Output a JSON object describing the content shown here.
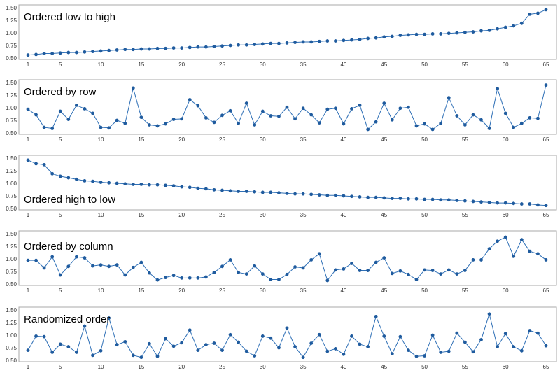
{
  "chart_data": [
    {
      "type": "line",
      "title": "Ordered low to high",
      "x": [
        1,
        2,
        3,
        4,
        5,
        6,
        7,
        8,
        9,
        10,
        11,
        12,
        13,
        14,
        15,
        16,
        17,
        18,
        19,
        20,
        21,
        22,
        23,
        24,
        25,
        26,
        27,
        28,
        29,
        30,
        31,
        32,
        33,
        34,
        35,
        36,
        37,
        38,
        39,
        40,
        41,
        42,
        43,
        44,
        45,
        46,
        47,
        48,
        49,
        50,
        51,
        52,
        53,
        54,
        55,
        56,
        57,
        58,
        59,
        60,
        61,
        62,
        63,
        64,
        65
      ],
      "values": [
        0.56,
        0.57,
        0.59,
        0.59,
        0.6,
        0.61,
        0.61,
        0.62,
        0.63,
        0.64,
        0.65,
        0.66,
        0.67,
        0.67,
        0.68,
        0.68,
        0.69,
        0.69,
        0.7,
        0.7,
        0.71,
        0.72,
        0.72,
        0.73,
        0.74,
        0.75,
        0.76,
        0.76,
        0.77,
        0.78,
        0.79,
        0.79,
        0.8,
        0.81,
        0.82,
        0.82,
        0.83,
        0.84,
        0.84,
        0.85,
        0.86,
        0.87,
        0.89,
        0.9,
        0.92,
        0.93,
        0.95,
        0.96,
        0.97,
        0.97,
        0.98,
        0.98,
        0.99,
        1.0,
        1.01,
        1.02,
        1.04,
        1.05,
        1.08,
        1.11,
        1.14,
        1.19,
        1.37,
        1.39,
        1.46
      ],
      "yticks": [
        "0.50",
        "0.75",
        "1.00",
        "1.25",
        "1.50"
      ],
      "ylim": [
        0.5,
        1.5
      ],
      "xticks": [
        1,
        5,
        10,
        15,
        20,
        25,
        30,
        35,
        40,
        45,
        50,
        55,
        60,
        65
      ],
      "xlim": [
        1,
        65
      ],
      "color": "#1f5b9e"
    },
    {
      "type": "line",
      "title": "Ordered by row",
      "x": [
        1,
        2,
        3,
        4,
        5,
        6,
        7,
        8,
        9,
        10,
        11,
        12,
        13,
        14,
        15,
        16,
        17,
        18,
        19,
        20,
        21,
        22,
        23,
        24,
        25,
        26,
        27,
        28,
        29,
        30,
        31,
        32,
        33,
        34,
        35,
        36,
        37,
        38,
        39,
        40,
        41,
        42,
        43,
        44,
        45,
        46,
        47,
        48,
        49,
        50,
        51,
        52,
        53,
        54,
        55,
        56,
        57,
        58,
        59,
        60,
        61,
        62,
        63,
        64,
        65
      ],
      "values": [
        0.97,
        0.86,
        0.61,
        0.59,
        0.93,
        0.77,
        1.05,
        0.98,
        0.89,
        0.61,
        0.6,
        0.75,
        0.69,
        1.39,
        0.81,
        0.66,
        0.64,
        0.68,
        0.77,
        0.78,
        1.16,
        1.04,
        0.8,
        0.71,
        0.85,
        0.94,
        0.69,
        1.09,
        0.66,
        0.93,
        0.84,
        0.83,
        1.01,
        0.78,
        0.99,
        0.86,
        0.7,
        0.97,
        0.99,
        0.68,
        0.98,
        1.05,
        0.57,
        0.72,
        1.09,
        0.76,
        0.99,
        1.01,
        0.64,
        0.68,
        0.57,
        0.69,
        1.2,
        0.84,
        0.66,
        0.86,
        0.76,
        0.59,
        1.38,
        0.89,
        0.61,
        0.69,
        0.8,
        0.79,
        1.45
      ],
      "yticks": [
        "0.50",
        "0.75",
        "1.00",
        "1.25",
        "1.50"
      ],
      "ylim": [
        0.5,
        1.5
      ],
      "xticks": [
        1,
        5,
        10,
        15,
        20,
        25,
        30,
        35,
        40,
        45,
        50,
        55,
        60,
        65
      ],
      "xlim": [
        1,
        65
      ],
      "color": "#1f5b9e"
    },
    {
      "type": "line",
      "title": "Ordered high to low",
      "x": [
        1,
        2,
        3,
        4,
        5,
        6,
        7,
        8,
        9,
        10,
        11,
        12,
        13,
        14,
        15,
        16,
        17,
        18,
        19,
        20,
        21,
        22,
        23,
        24,
        25,
        26,
        27,
        28,
        29,
        30,
        31,
        32,
        33,
        34,
        35,
        36,
        37,
        38,
        39,
        40,
        41,
        42,
        43,
        44,
        45,
        46,
        47,
        48,
        49,
        50,
        51,
        52,
        53,
        54,
        55,
        56,
        57,
        58,
        59,
        60,
        61,
        62,
        63,
        64,
        65
      ],
      "values": [
        1.46,
        1.39,
        1.37,
        1.19,
        1.14,
        1.11,
        1.08,
        1.05,
        1.04,
        1.02,
        1.01,
        1.0,
        0.99,
        0.98,
        0.98,
        0.97,
        0.97,
        0.96,
        0.95,
        0.93,
        0.92,
        0.9,
        0.89,
        0.87,
        0.86,
        0.85,
        0.84,
        0.84,
        0.83,
        0.82,
        0.82,
        0.81,
        0.8,
        0.79,
        0.79,
        0.78,
        0.77,
        0.76,
        0.76,
        0.75,
        0.74,
        0.73,
        0.72,
        0.72,
        0.71,
        0.7,
        0.7,
        0.69,
        0.69,
        0.68,
        0.68,
        0.67,
        0.67,
        0.66,
        0.65,
        0.64,
        0.63,
        0.62,
        0.61,
        0.61,
        0.6,
        0.59,
        0.59,
        0.57,
        0.56
      ],
      "yticks": [
        "0.50",
        "0.75",
        "1.00",
        "1.25",
        "1.50"
      ],
      "ylim": [
        0.5,
        1.5
      ],
      "xticks": [
        1,
        5,
        10,
        15,
        20,
        25,
        30,
        35,
        40,
        45,
        50,
        55,
        60,
        65
      ],
      "xlim": [
        1,
        65
      ],
      "color": "#1f5b9e"
    },
    {
      "type": "line",
      "title": "Ordered by column",
      "x": [
        1,
        2,
        3,
        4,
        5,
        6,
        7,
        8,
        9,
        10,
        11,
        12,
        13,
        14,
        15,
        16,
        17,
        18,
        19,
        20,
        21,
        22,
        23,
        24,
        25,
        26,
        27,
        28,
        29,
        30,
        31,
        32,
        33,
        34,
        35,
        36,
        37,
        38,
        39,
        40,
        41,
        42,
        43,
        44,
        45,
        46,
        47,
        48,
        49,
        50,
        51,
        52,
        53,
        54,
        55,
        56,
        57,
        58,
        59,
        60,
        61,
        62,
        63,
        64,
        65
      ],
      "values": [
        0.97,
        0.97,
        0.82,
        1.04,
        0.68,
        0.85,
        1.04,
        1.02,
        0.86,
        0.88,
        0.85,
        0.88,
        0.68,
        0.83,
        0.93,
        0.72,
        0.58,
        0.63,
        0.67,
        0.62,
        0.62,
        0.62,
        0.64,
        0.73,
        0.85,
        0.98,
        0.73,
        0.7,
        0.86,
        0.7,
        0.59,
        0.59,
        0.69,
        0.84,
        0.82,
        0.98,
        1.1,
        0.57,
        0.78,
        0.8,
        0.91,
        0.77,
        0.77,
        0.93,
        1.02,
        0.71,
        0.76,
        0.69,
        0.59,
        0.78,
        0.77,
        0.7,
        0.78,
        0.7,
        0.77,
        0.98,
        0.98,
        1.2,
        1.35,
        1.43,
        1.05,
        1.38,
        1.15,
        1.1,
        0.98
      ],
      "yticks": [
        "0.50",
        "0.75",
        "1.00",
        "1.25",
        "1.50"
      ],
      "ylim": [
        0.5,
        1.5
      ],
      "xticks": [
        1,
        5,
        10,
        15,
        20,
        25,
        30,
        35,
        40,
        45,
        50,
        55,
        60,
        65
      ],
      "xlim": [
        1,
        65
      ],
      "color": "#1f5b9e"
    },
    {
      "type": "line",
      "title": "Randomized order",
      "x": [
        1,
        2,
        3,
        4,
        5,
        6,
        7,
        8,
        9,
        10,
        11,
        12,
        13,
        14,
        15,
        16,
        17,
        18,
        19,
        20,
        21,
        22,
        23,
        24,
        25,
        26,
        27,
        28,
        29,
        30,
        31,
        32,
        33,
        34,
        35,
        36,
        37,
        38,
        39,
        40,
        41,
        42,
        43,
        44,
        45,
        46,
        47,
        48,
        49,
        50,
        51,
        52,
        53,
        54,
        55,
        56,
        57,
        58,
        59,
        60,
        61,
        62,
        63,
        64,
        65
      ],
      "values": [
        0.7,
        0.98,
        0.97,
        0.66,
        0.82,
        0.77,
        0.66,
        1.18,
        0.6,
        0.69,
        1.34,
        0.81,
        0.87,
        0.6,
        0.56,
        0.83,
        0.58,
        0.93,
        0.78,
        0.85,
        1.1,
        0.7,
        0.81,
        0.84,
        0.7,
        1.01,
        0.86,
        0.68,
        0.59,
        0.98,
        0.94,
        0.75,
        1.14,
        0.77,
        0.56,
        0.84,
        1.01,
        0.68,
        0.73,
        0.62,
        0.98,
        0.82,
        0.77,
        1.37,
        0.98,
        0.63,
        0.97,
        0.7,
        0.58,
        0.59,
        1.0,
        0.66,
        0.68,
        1.04,
        0.86,
        0.67,
        0.91,
        1.42,
        0.77,
        1.03,
        0.77,
        0.69,
        1.09,
        1.04,
        0.79
      ],
      "yticks": [
        "0.50",
        "0.75",
        "1.00",
        "1.25",
        "1.50"
      ],
      "ylim": [
        0.5,
        1.5
      ],
      "xticks": [
        1,
        5,
        10,
        15,
        20,
        25,
        30,
        35,
        40,
        45,
        50,
        55,
        60,
        65
      ],
      "xlim": [
        1,
        65
      ],
      "color": "#1f5b9e"
    }
  ]
}
